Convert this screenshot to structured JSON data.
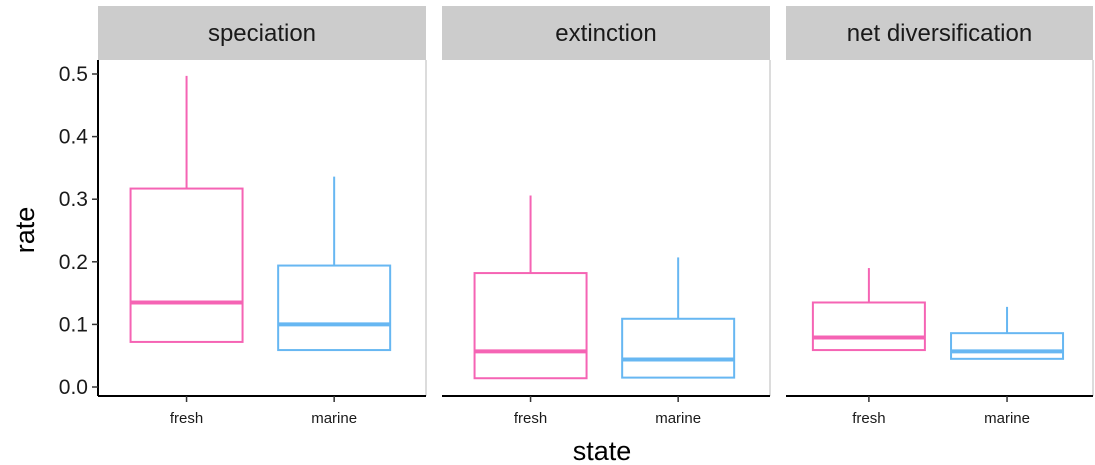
{
  "chart_data": {
    "type": "boxplot",
    "xlabel": "state",
    "ylabel": "rate",
    "ylim": [
      0,
      0.5
    ],
    "yticks": [
      "0.0",
      "0.1",
      "0.2",
      "0.3",
      "0.4",
      "0.5"
    ],
    "categories": [
      "fresh",
      "marine"
    ],
    "colors": {
      "fresh": "#f564b4",
      "marine": "#67b7f2"
    },
    "panel_strip_color": "#cccccc",
    "facets": [
      {
        "label": "speciation",
        "boxes": [
          {
            "category": "fresh",
            "min": 0.072,
            "q1": 0.072,
            "median": 0.135,
            "q3": 0.317,
            "max": 0.497
          },
          {
            "category": "marine",
            "min": 0.059,
            "q1": 0.059,
            "median": 0.1,
            "q3": 0.194,
            "max": 0.336
          }
        ]
      },
      {
        "label": "extinction",
        "boxes": [
          {
            "category": "fresh",
            "min": 0.014,
            "q1": 0.014,
            "median": 0.057,
            "q3": 0.182,
            "max": 0.306
          },
          {
            "category": "marine",
            "min": 0.015,
            "q1": 0.015,
            "median": 0.044,
            "q3": 0.109,
            "max": 0.207
          }
        ]
      },
      {
        "label": "net diversification",
        "boxes": [
          {
            "category": "fresh",
            "min": 0.059,
            "q1": 0.059,
            "median": 0.079,
            "q3": 0.135,
            "max": 0.19
          },
          {
            "category": "marine",
            "min": 0.045,
            "q1": 0.045,
            "median": 0.057,
            "q3": 0.086,
            "max": 0.128
          }
        ]
      }
    ]
  }
}
